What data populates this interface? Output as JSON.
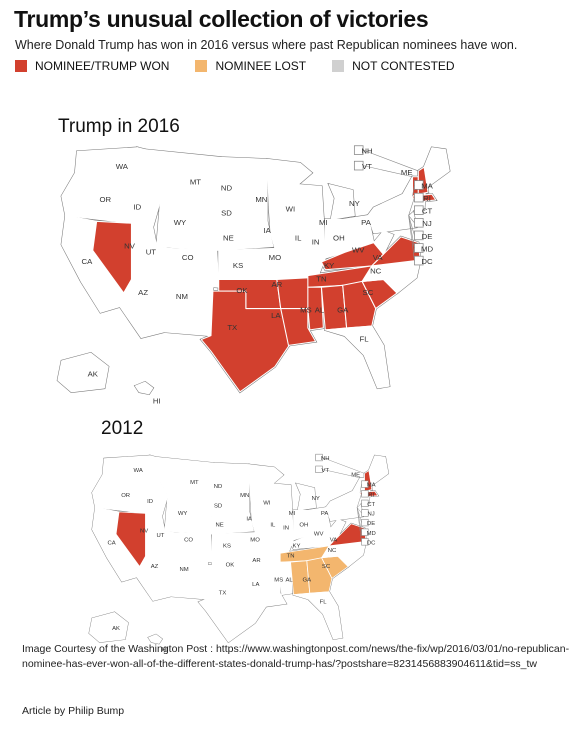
{
  "title": "Trump’s unusual collection of victories",
  "subtitle": "Where Donald Trump has won in 2016 versus where past Republican nominees have won.",
  "legend": [
    {
      "label": "NOMINEE/TRUMP WON",
      "color": "#d2402e"
    },
    {
      "label": "NOMINEE LOST",
      "color": "#f3b66e"
    },
    {
      "label": "NOT CONTESTED",
      "color": "#d0d0d0"
    }
  ],
  "colors": {
    "won": "#d2402e",
    "lost": "#f3b66e",
    "not_contested": "#d0d0d0",
    "neutral": "#ffffff",
    "outline": "#777777"
  },
  "maps": [
    {
      "title": "Trump in 2016",
      "won": [
        "NV",
        "TN",
        "AL",
        "GA",
        "SC",
        "VA",
        "VT",
        "MA",
        "AR",
        "OK",
        "TX",
        "MS",
        "LA",
        "KY",
        "NH"
      ],
      "lost": []
    },
    {
      "title": "2012",
      "won": [
        "NV",
        "VA",
        "MA",
        "NH"
      ],
      "lost": [
        "TN",
        "AL",
        "GA",
        "SC"
      ]
    }
  ],
  "state_labels": [
    "WA",
    "OR",
    "CA",
    "ID",
    "NV",
    "MT",
    "WY",
    "UT",
    "AZ",
    "ND",
    "SD",
    "NE",
    "CO",
    "KS",
    "NM",
    "OK",
    "TX",
    "MN",
    "IA",
    "MO",
    "AR",
    "LA",
    "WI",
    "IL",
    "MI",
    "IN",
    "OH",
    "KY",
    "TN",
    "MS",
    "AL",
    "GA",
    "FL",
    "SC",
    "NC",
    "VA",
    "WV",
    "PA",
    "NY",
    "ME",
    "AK",
    "HI"
  ],
  "small_states": [
    "NH",
    "VT",
    "MA",
    "RI",
    "CT",
    "NJ",
    "DE",
    "MD",
    "DC"
  ],
  "credit_prefix": "Image Courtesy of the Washington Post :",
  "credit_url": "https://www.washingtonpost.com/news/the-fix/wp/2016/03/01/no-republican-nominee-has-ever-won-all-of-the-different-states-donald-trump-has/?postshare=8231456883904611&tid=ss_tw",
  "byline": "Article by Philip Bump"
}
